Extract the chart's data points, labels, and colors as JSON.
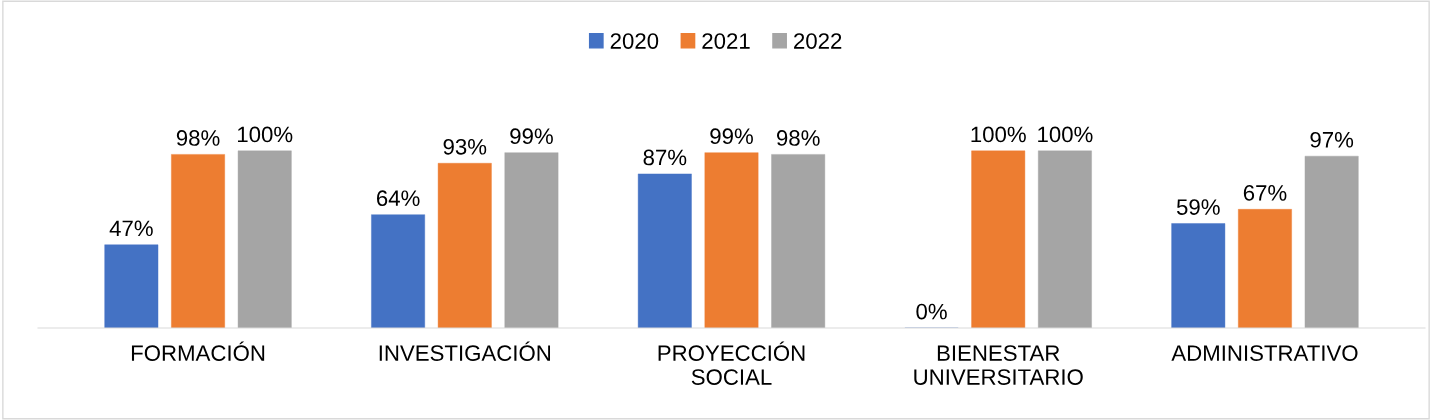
{
  "chart_data": {
    "type": "bar",
    "categories": [
      "FORMACIÓN",
      "INVESTIGACIÓN",
      "PROYECCIÓN\nSOCIAL",
      "BIENESTAR\nUNIVERSITARIO",
      "ADMINISTRATIVO"
    ],
    "series": [
      {
        "name": "2020",
        "color": "#4472c4",
        "values": [
          47,
          64,
          87,
          0,
          59
        ],
        "value_labels": [
          "47%",
          "64%",
          "87%",
          "0%",
          "59%"
        ]
      },
      {
        "name": "2021",
        "color": "#ed7d31",
        "values": [
          98,
          93,
          99,
          100,
          67
        ],
        "value_labels": [
          "98%",
          "93%",
          "99%",
          "100%",
          "67%"
        ]
      },
      {
        "name": "2022",
        "color": "#a5a5a5",
        "values": [
          100,
          99,
          98,
          100,
          97
        ],
        "value_labels": [
          "100%",
          "99%",
          "98%",
          "100%",
          "97%"
        ]
      }
    ],
    "legend": "top",
    "grid": false
  }
}
